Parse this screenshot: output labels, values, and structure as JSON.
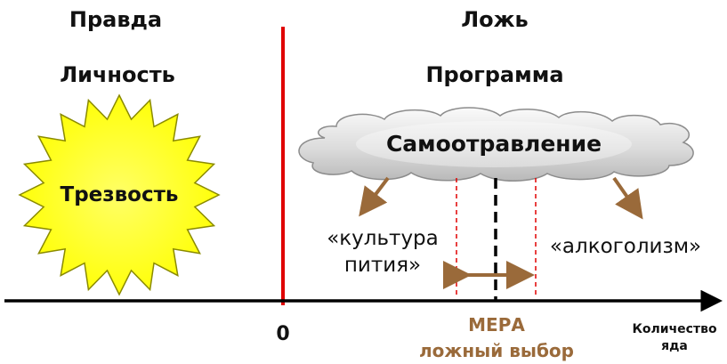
{
  "left_column": {
    "title": "Правда",
    "subtitle": "Личность",
    "sun_label": "Трезвость"
  },
  "right_column": {
    "title": "Ложь",
    "subtitle": "Программа",
    "cloud_label": "Самоотравление"
  },
  "branches": {
    "left_label_line1": "«культура",
    "left_label_line2": "пития»",
    "right_label": "«алкоголизм»"
  },
  "axis": {
    "zero_label": "0",
    "measure_label": "МЕРА",
    "false_choice_label": "ложный выбор",
    "axis_label_line1": "Количество",
    "axis_label_line2": "яда"
  },
  "colors": {
    "sun_fill": "#ffff00",
    "divider": "#e00000",
    "dashed_bounds": "#e00000",
    "arrows": "#9a6a3a",
    "measure_text": "#9a6a3a",
    "cloud_fill_light": "#f3f3f3",
    "cloud_fill_dark": "#bdbdbd"
  }
}
